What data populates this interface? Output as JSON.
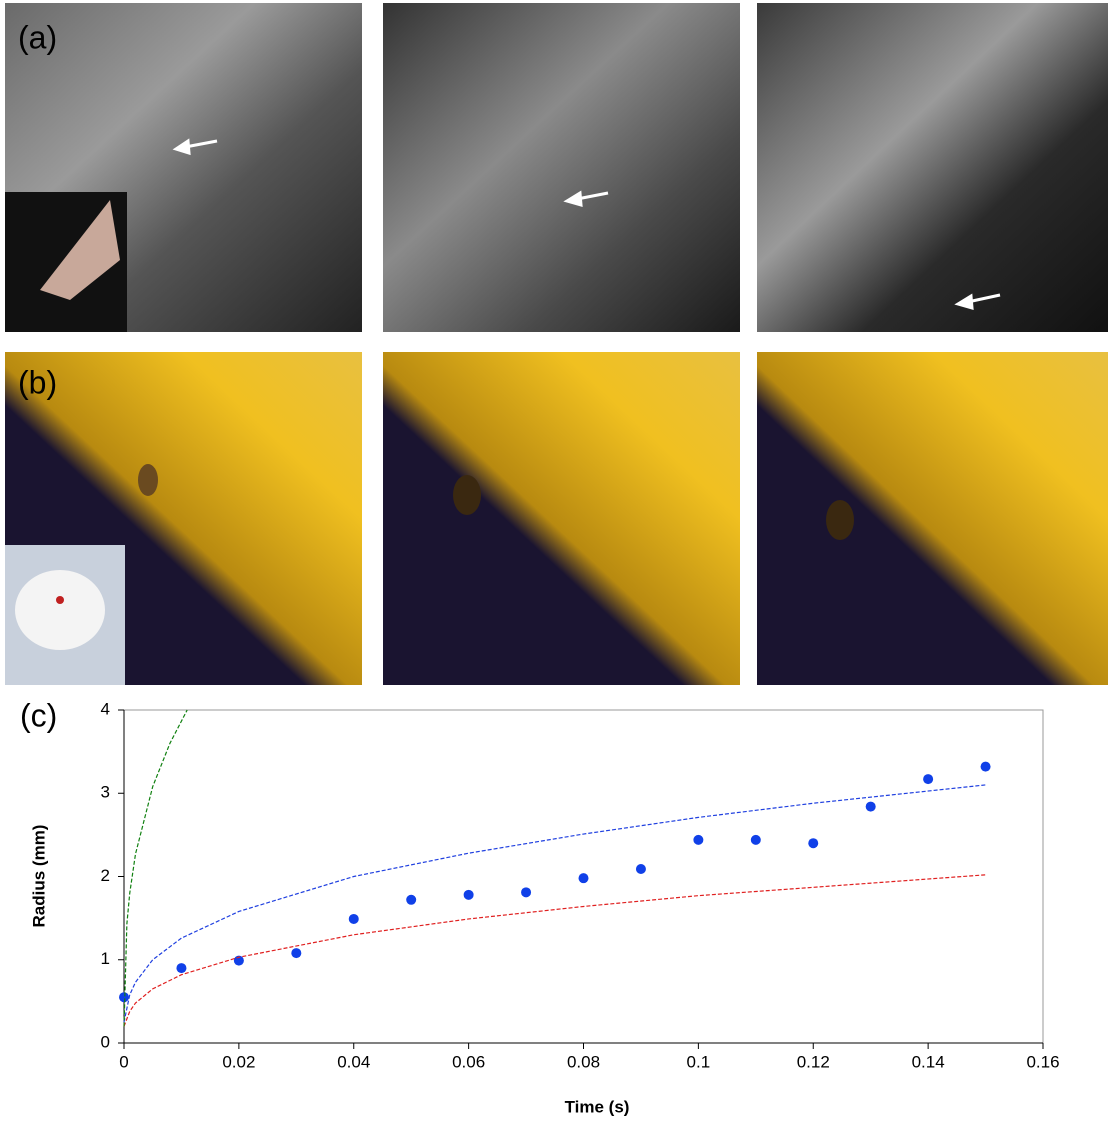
{
  "panel_labels": [
    "(a)",
    "(b)",
    "(c)"
  ],
  "chart_data": {
    "type": "scatter",
    "x_label": "Time (s)",
    "y_label": "Radius (mm)",
    "xlim": [
      0,
      0.16
    ],
    "xticks": [
      0,
      0.02,
      0.04,
      0.06,
      0.08,
      0.1,
      0.12,
      0.14,
      0.16
    ],
    "ylim": [
      0,
      4
    ],
    "yticks": [
      0,
      1,
      2,
      3,
      4
    ],
    "series": [
      {
        "mode": "markers",
        "color": "#1040e8",
        "x": [
          0,
          0.01,
          0.02,
          0.03,
          0.04,
          0.05,
          0.06,
          0.07,
          0.08,
          0.09,
          0.1,
          0.11,
          0.12,
          0.13,
          0.14,
          0.15
        ],
        "values": [
          0.55,
          0.9,
          0.99,
          1.08,
          1.49,
          1.72,
          1.78,
          1.81,
          1.98,
          2.09,
          2.44,
          2.44,
          2.4,
          2.84,
          3.17,
          3.32
        ]
      },
      {
        "mode": "dashed",
        "color": "#2040e0",
        "x": [
          0,
          0.001,
          0.002,
          0.005,
          0.01,
          0.02,
          0.04,
          0.06,
          0.08,
          0.1,
          0.12,
          0.15
        ],
        "values": [
          0.25,
          0.58,
          0.73,
          1.0,
          1.26,
          1.58,
          2.0,
          2.28,
          2.51,
          2.71,
          2.88,
          3.1
        ]
      },
      {
        "mode": "dashed",
        "color": "#e02020",
        "x": [
          0,
          0.001,
          0.002,
          0.005,
          0.01,
          0.02,
          0.04,
          0.06,
          0.08,
          0.1,
          0.12,
          0.15
        ],
        "values": [
          0.2,
          0.38,
          0.48,
          0.65,
          0.82,
          1.03,
          1.3,
          1.49,
          1.64,
          1.77,
          1.87,
          2.02
        ]
      },
      {
        "mode": "dashed",
        "color": "#108010",
        "x": [
          0,
          0.0005,
          0.001,
          0.002,
          0.005,
          0.008,
          0.011
        ],
        "values": [
          0.2,
          1.43,
          1.8,
          2.27,
          3.08,
          3.6,
          4.0
        ]
      }
    ]
  }
}
